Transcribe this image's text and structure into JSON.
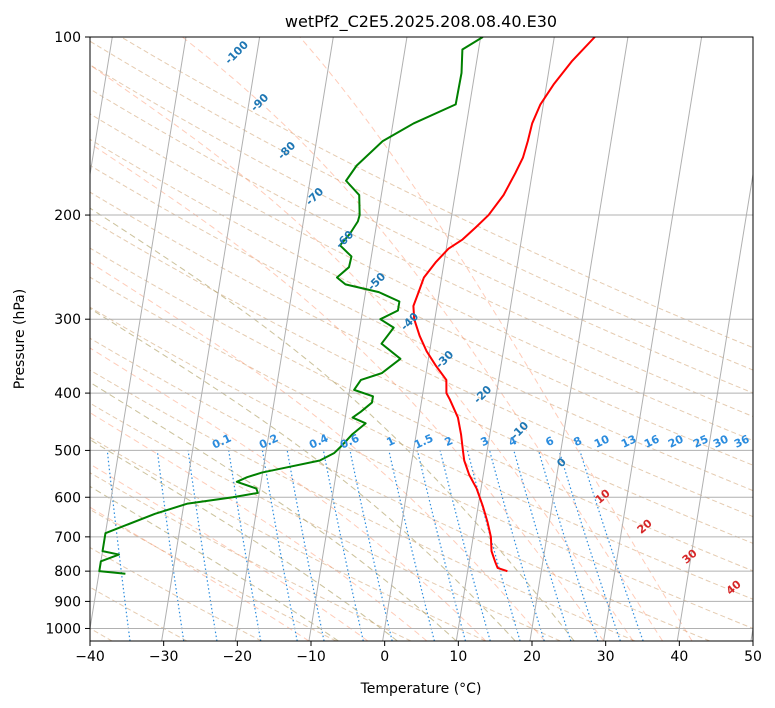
{
  "chart_data": {
    "type": "line",
    "title": "wetPf2_C2E5.2025.208.08.40.E30",
    "xlabel": "Temperature (°C)",
    "ylabel": "Pressure (hPa)",
    "xlim": [
      -40,
      50
    ],
    "ylim": [
      1050,
      100
    ],
    "y_scale": "log",
    "grid": true,
    "x_ticks": [
      "−40",
      "−30",
      "−20",
      "−10",
      "0",
      "10",
      "20",
      "30",
      "40",
      "50"
    ],
    "y_ticks": [
      "1000",
      "900",
      "800",
      "700",
      "600",
      "500",
      "400",
      "300",
      "200",
      "100"
    ],
    "series": [
      {
        "color": "#ff0000",
        "pressure": [
          800,
          790,
          770,
          740,
          700,
          660,
          620,
          580,
          550,
          520,
          500,
          470,
          440,
          410,
          400,
          380,
          360,
          340,
          320,
          300,
          285,
          270,
          255,
          240,
          228,
          220,
          210,
          200,
          185,
          170,
          160,
          150,
          140,
          130,
          120,
          110,
          100
        ],
        "temperature": [
          15.4,
          14.0,
          13.5,
          12.8,
          12.4,
          11.6,
          10.6,
          9.4,
          8.1,
          7.1,
          6.7,
          6.1,
          5.3,
          3.8,
          3.2,
          2.9,
          1.2,
          -0.4,
          -1.7,
          -2.8,
          -3.2,
          -2.8,
          -2.4,
          -1.1,
          0.3,
          2.0,
          3.5,
          5.0,
          6.6,
          7.7,
          8.4,
          8.7,
          8.9,
          9.6,
          11.0,
          12.9,
          15.5
        ]
      },
      {
        "color": "#008000",
        "pressure": [
          808,
          800,
          770,
          750,
          740,
          690,
          640,
          615,
          600,
          590,
          580,
          565,
          555,
          545,
          535,
          520,
          505,
          490,
          470,
          450,
          440,
          430,
          415,
          405,
          395,
          380,
          370,
          350,
          330,
          310,
          300,
          290,
          280,
          270,
          262,
          255,
          245,
          235,
          225,
          215,
          205,
          200,
          185,
          175,
          165,
          150,
          140,
          130,
          115,
          105,
          100
        ],
        "temperature": [
          -36.4,
          -40,
          -40,
          -37.7,
          -40,
          -40,
          -33.7,
          -29.5,
          -23.5,
          -20.2,
          -20.5,
          -23.3,
          -22.0,
          -20.1,
          -17.1,
          -12.5,
          -10.7,
          -9.8,
          -8.7,
          -7.1,
          -9.0,
          -8.0,
          -6.7,
          -6.7,
          -9.4,
          -8.7,
          -6.0,
          -3.8,
          -6.7,
          -5.4,
          -7.4,
          -5.2,
          -5.2,
          -8.2,
          -12.9,
          -14.2,
          -12.8,
          -12.7,
          -14.5,
          -13.4,
          -12.6,
          -12.5,
          -13.0,
          -15.1,
          -14.0,
          -11.0,
          -7.2,
          -1.9,
          -1.8,
          -2.2,
          0.3
        ]
      }
    ],
    "dry_adiabat_labels": [
      "-100",
      "-90",
      "-80",
      "-70",
      "-60",
      "-50",
      "-40",
      "-30",
      "-20",
      "-10",
      "0"
    ],
    "mixing_ratio_labels": [
      "0.1",
      "0.2",
      "0.4",
      "0.6",
      "1",
      "1.5",
      "2",
      "3",
      "4",
      "6",
      "8",
      "10",
      "13",
      "16",
      "20",
      "25",
      "30",
      "36"
    ],
    "moist_adiabat_labels": [
      "10",
      "20",
      "30",
      "40"
    ]
  }
}
